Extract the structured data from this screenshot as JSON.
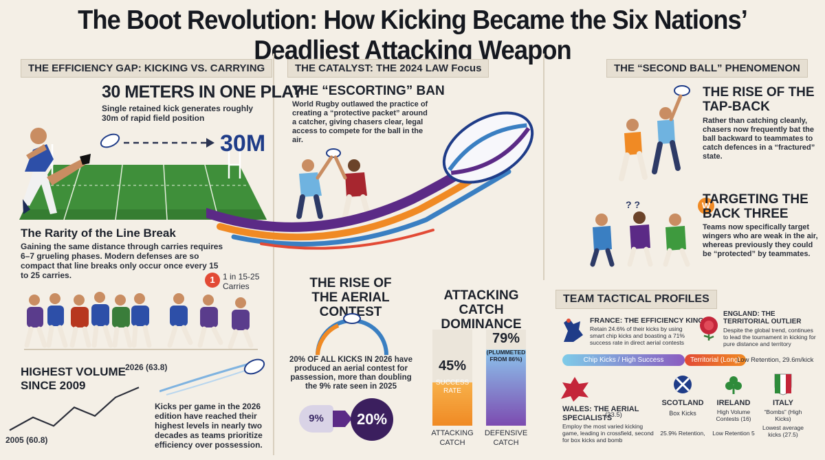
{
  "title": "The Boot Revolution: How Kicking Became the Six Nations’ Deadliest Attacking Weapon",
  "efficiency": {
    "header": "THE EFFICIENCY GAP: KICKING VS. CARRYING",
    "meters_title": "30 METERS IN ONE PLAY",
    "meters_desc": "Single retained kick generates roughly 30m of rapid field position",
    "meters_value": "30M",
    "rarity_title": "The Rarity of the Line Break",
    "rarity_desc": "Gaining the same distance through carries requires 6–7 grueling phases. Modern defenses are so compact that line breaks only occur once every 15 to 25 carries.",
    "badge_num": "1",
    "badge_text": "1 in 15-25 Carries",
    "volume_title": "HIGHEST VOLUME SINCE 2009",
    "volume_end_label": "2026 (63.8)",
    "volume_start_label": "2005 (60.8)",
    "volume_desc": "Kicks per game in the 2026 edition have reached their highest levels in nearly two decades as teams prioritize efficiency over possession."
  },
  "volume_line": {
    "type": "line",
    "x": [
      2005,
      2026
    ],
    "y": [
      60.8,
      63.8
    ]
  },
  "catalyst": {
    "header": "THE CATALYST: THE 2024 LAW Focus",
    "ban_title": "THE “ESCORTING” BAN",
    "ban_desc": "World Rugby outlawed the practice of creating a “protective packet” around a catcher, giving chasers clear, legal access to compete for the ball in the air."
  },
  "aerial": {
    "title": "THE RISE OF THE AERIAL CONTEST",
    "desc": "20% OF ALL KICKS IN 2026 have produced an aerial contest for passession, more than doubling the 9% rate seen in 2025",
    "from": "9%",
    "to": "20%"
  },
  "catch": {
    "title": "ATTACKING CATCH DOMINANCE",
    "attack_value": "45%",
    "attack_sub": "SUCCESS RATE",
    "attack_label": "ATTACKING CATCH",
    "defense_value": "79%",
    "defense_sub": "(PLUMMETED FROM 86%)",
    "defense_label": "DEFENSIVE CATCH"
  },
  "catch_chart": {
    "type": "bar",
    "categories": [
      "ATTACKING CATCH",
      "DEFENSIVE CATCH"
    ],
    "values": [
      45,
      79
    ],
    "colors": [
      "#f08a24",
      "#3a7fc2"
    ]
  },
  "second_ball": {
    "header": "THE “SECOND BALL” PHENOMENON",
    "tap_title": "THE RISE OF THE TAP-BACK",
    "tap_desc": "Rather than catching cleanly, chasers now frequently bat the ball backward to teammates to catch defences in a “fractured” state.",
    "target_title": "TARGETING THE BACK THREE",
    "target_desc": "Teams now specifically target wingers who are weak in the air, whereas previously they could be “protected” by teammates.",
    "w_badge": "W"
  },
  "teams": {
    "header": "TEAM TACTICAL PROFILES",
    "france_title": "FRANCE: THE EFFICIENCY KINGS",
    "france_desc": "Retain 24.6% of their kicks by using smart chip kicks and boasting a 71% success rate in direct aerial contests",
    "france_pill": "Chip Kicks / High Success",
    "england_title": "ENGLAND: THE TERRITORIAL OUTLIER",
    "england_desc": "Despite the global trend, continues to lead the tournament in kicking for pure distance and territory",
    "england_pill": "Territorial (Long)",
    "england_note": "Low Retention, 29.6m/kick",
    "wales_title": "WALES: THE AERIAL SPECIALISTS",
    "wales_num": "(33.5)",
    "wales_desc": "Employ   the most varied kicking game, leading in crossfield, second for box kicks and bomb",
    "scotland_title": "SCOTLAND",
    "scotland_sub": "Box Kicks",
    "scotland_note": "25.9% Retention,",
    "ireland_title": "IRELAND",
    "ireland_sub": "High Volume Contests (16)",
    "ireland_note": "Low Retention 5",
    "italy_title": "ITALY",
    "italy_sub": "“Bombs” (High Kicks)",
    "italy_note": "Lowest average kicks  (27.5)"
  },
  "colors": {
    "accent_orange": "#f08a24",
    "accent_blue": "#3a7fc2",
    "accent_purple": "#5b2a86",
    "grass": "#3f8f3a",
    "paper": "#f4efe6"
  },
  "icons": [
    "rugby-ball-icon",
    "rooster-icon",
    "rose-icon",
    "dragon-icon",
    "thistle-icon",
    "shamrock-icon",
    "italy-shield-icon",
    "arrow-icon"
  ]
}
